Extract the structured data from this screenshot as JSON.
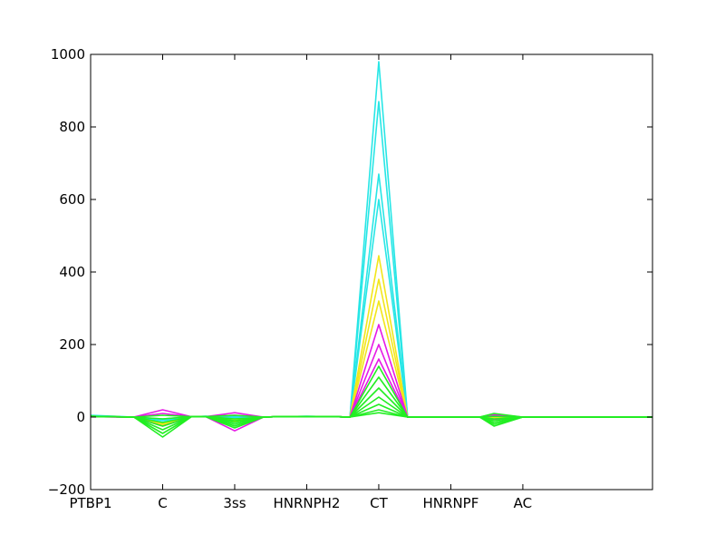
{
  "chart_data": {
    "type": "line",
    "title": "",
    "xlabel": "",
    "ylabel": "",
    "ylim": [
      -200,
      1000
    ],
    "xlim": [
      0,
      7.8
    ],
    "yticks": [
      -200,
      0,
      200,
      400,
      600,
      800,
      1000
    ],
    "xticks": [
      {
        "pos": 0,
        "label": "PTBP1"
      },
      {
        "pos": 1,
        "label": "C"
      },
      {
        "pos": 2,
        "label": "3ss"
      },
      {
        "pos": 3,
        "label": "HNRNPH2"
      },
      {
        "pos": 4,
        "label": "CT"
      },
      {
        "pos": 5,
        "label": "HNRNPF"
      },
      {
        "pos": 6,
        "label": "AC"
      }
    ],
    "grid": false,
    "legend": "none",
    "x": [
      0,
      0.6,
      1,
      1.4,
      1.6,
      2,
      2.4,
      2.6,
      3,
      3.4,
      3.6,
      4,
      4.4,
      4.6,
      5,
      5.4,
      5.6,
      6,
      6.4,
      6.6,
      7,
      7.4,
      7.8
    ],
    "series": [
      {
        "color": "#27e6e6",
        "values": [
          5,
          0,
          -5,
          1,
          2,
          1,
          0,
          1,
          2,
          1,
          0,
          980,
          0,
          0,
          0,
          0,
          3,
          0,
          0,
          0,
          0,
          0,
          0
        ]
      },
      {
        "color": "#27e6e6",
        "values": [
          3,
          0,
          -10,
          1,
          2,
          0,
          0,
          1,
          2,
          1,
          0,
          870,
          0,
          0,
          0,
          0,
          2,
          0,
          0,
          0,
          0,
          0,
          0
        ]
      },
      {
        "color": "#27e6e6",
        "values": [
          2,
          0,
          -15,
          1,
          2,
          -5,
          0,
          1,
          2,
          1,
          0,
          670,
          0,
          0,
          0,
          0,
          1,
          0,
          0,
          0,
          0,
          0,
          0
        ]
      },
      {
        "color": "#27e6e6",
        "values": [
          2,
          0,
          -8,
          1,
          1,
          -3,
          0,
          1,
          1,
          1,
          0,
          600,
          0,
          0,
          0,
          0,
          0,
          0,
          0,
          0,
          0,
          0,
          0
        ]
      },
      {
        "color": "#f2e61a",
        "values": [
          2,
          0,
          -20,
          1,
          1,
          -10,
          0,
          1,
          1,
          1,
          0,
          445,
          0,
          0,
          0,
          0,
          0,
          0,
          0,
          0,
          0,
          0,
          0
        ]
      },
      {
        "color": "#f2e61a",
        "values": [
          2,
          0,
          -18,
          1,
          1,
          -8,
          0,
          1,
          1,
          1,
          0,
          380,
          0,
          0,
          0,
          0,
          -2,
          0,
          0,
          0,
          0,
          0,
          0
        ]
      },
      {
        "color": "#f2e61a",
        "values": [
          1,
          0,
          -22,
          1,
          1,
          -12,
          0,
          1,
          1,
          1,
          0,
          320,
          0,
          0,
          0,
          0,
          -4,
          0,
          0,
          0,
          0,
          0,
          0
        ]
      },
      {
        "color": "#e61ae6",
        "values": [
          1,
          0,
          20,
          1,
          1,
          12,
          0,
          1,
          1,
          1,
          0,
          255,
          0,
          0,
          0,
          0,
          8,
          0,
          0,
          0,
          0,
          0,
          0
        ]
      },
      {
        "color": "#e61ae6",
        "values": [
          1,
          0,
          -25,
          1,
          1,
          -38,
          0,
          1,
          1,
          1,
          0,
          200,
          0,
          0,
          0,
          0,
          -6,
          0,
          0,
          0,
          0,
          0,
          0
        ]
      },
      {
        "color": "#e61ae6",
        "values": [
          1,
          0,
          10,
          1,
          1,
          5,
          0,
          1,
          1,
          1,
          0,
          160,
          0,
          0,
          0,
          0,
          5,
          0,
          0,
          0,
          0,
          0,
          0
        ]
      },
      {
        "color": "#22ee22",
        "values": [
          2,
          0,
          -55,
          1,
          1,
          -30,
          0,
          1,
          1,
          1,
          0,
          140,
          0,
          0,
          0,
          0,
          -25,
          0,
          0,
          0,
          0,
          0,
          0
        ]
      },
      {
        "color": "#22ee22",
        "values": [
          2,
          0,
          -45,
          1,
          1,
          -25,
          0,
          1,
          1,
          1,
          0,
          110,
          0,
          0,
          0,
          0,
          -20,
          0,
          0,
          0,
          0,
          0,
          0
        ]
      },
      {
        "color": "#22ee22",
        "values": [
          2,
          0,
          -35,
          1,
          1,
          -20,
          0,
          1,
          1,
          1,
          0,
          80,
          0,
          0,
          0,
          0,
          -15,
          0,
          0,
          0,
          0,
          0,
          0
        ]
      },
      {
        "color": "#22ee22",
        "values": [
          2,
          0,
          -25,
          1,
          1,
          -15,
          0,
          1,
          1,
          1,
          0,
          55,
          0,
          0,
          0,
          0,
          -10,
          0,
          0,
          0,
          0,
          0,
          0
        ]
      },
      {
        "color": "#22ee22",
        "values": [
          2,
          0,
          -15,
          1,
          1,
          -10,
          0,
          1,
          1,
          1,
          0,
          35,
          0,
          0,
          0,
          0,
          10,
          0,
          0,
          0,
          0,
          0,
          0
        ]
      },
      {
        "color": "#22ee22",
        "values": [
          2,
          0,
          5,
          1,
          1,
          5,
          0,
          1,
          1,
          1,
          0,
          20,
          0,
          0,
          0,
          0,
          -5,
          0,
          0,
          0,
          0,
          0,
          0
        ]
      },
      {
        "color": "#22ee22",
        "values": [
          2,
          0,
          -5,
          1,
          1,
          -5,
          0,
          1,
          1,
          1,
          0,
          12,
          0,
          0,
          0,
          0,
          2,
          0,
          0,
          0,
          0,
          0,
          0
        ]
      }
    ]
  }
}
